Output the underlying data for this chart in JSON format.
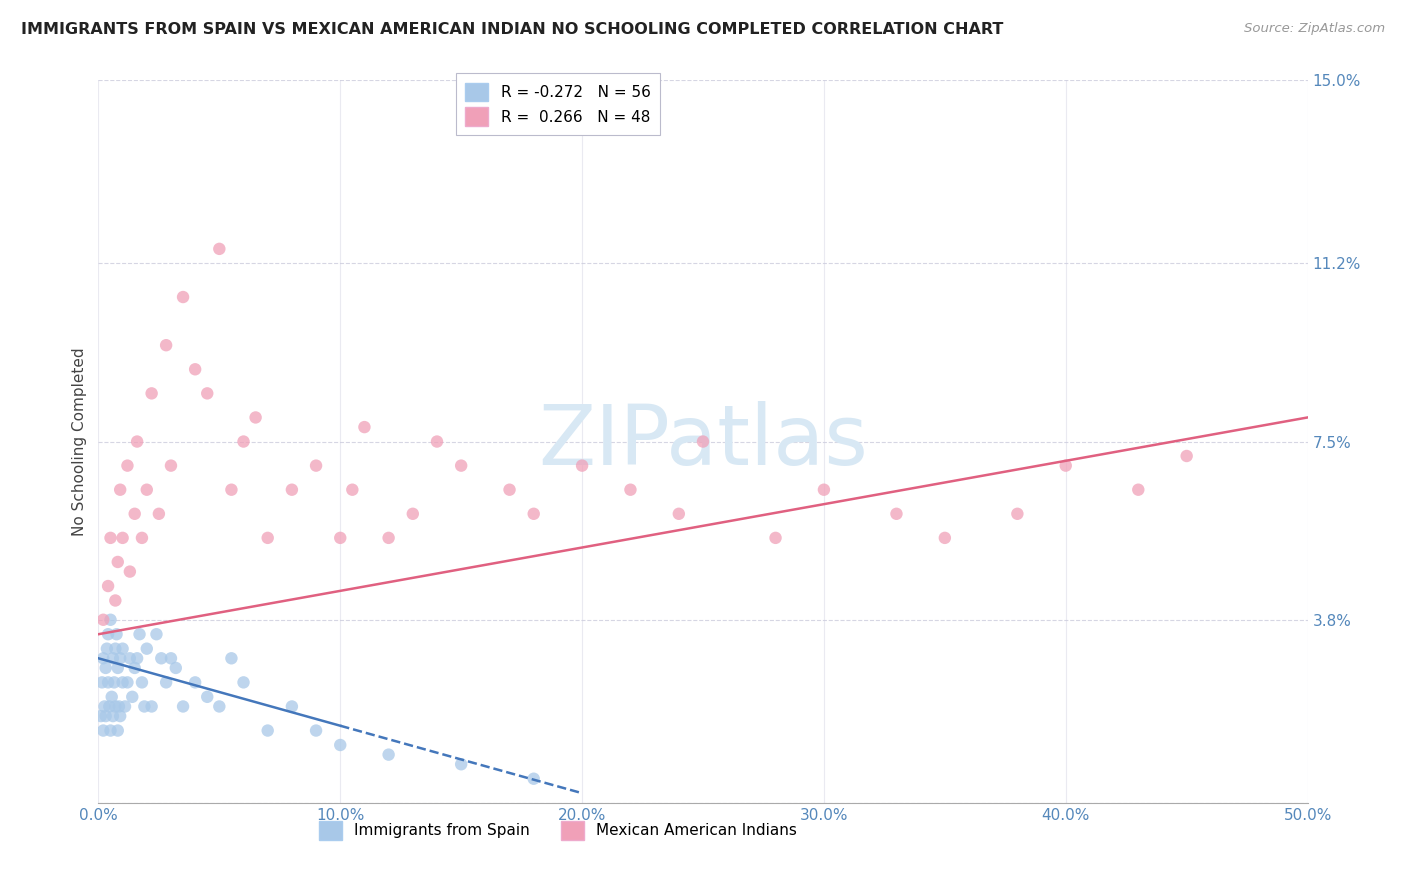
{
  "title": "IMMIGRANTS FROM SPAIN VS MEXICAN AMERICAN INDIAN NO SCHOOLING COMPLETED CORRELATION CHART",
  "source": "Source: ZipAtlas.com",
  "ylabel": "No Schooling Completed",
  "xlim": [
    0.0,
    50.0
  ],
  "ylim": [
    0.0,
    15.0
  ],
  "xticks": [
    0.0,
    10.0,
    20.0,
    30.0,
    40.0,
    50.0
  ],
  "yticks": [
    0.0,
    3.8,
    7.5,
    11.2,
    15.0
  ],
  "xtick_labels": [
    "0.0%",
    "10.0%",
    "20.0%",
    "30.0%",
    "40.0%",
    "50.0%"
  ],
  "ytick_labels": [
    "",
    "3.8%",
    "7.5%",
    "11.2%",
    "15.0%"
  ],
  "blue_R": -0.272,
  "blue_N": 56,
  "pink_R": 0.266,
  "pink_N": 48,
  "blue_color": "#A8C8E8",
  "pink_color": "#F0A0B8",
  "blue_line_color": "#4477BB",
  "pink_line_color": "#E06080",
  "legend_label_blue": "Immigrants from Spain",
  "legend_label_pink": "Mexican American Indians",
  "blue_scatter_x": [
    0.1,
    0.15,
    0.2,
    0.2,
    0.25,
    0.3,
    0.3,
    0.35,
    0.4,
    0.4,
    0.45,
    0.5,
    0.5,
    0.55,
    0.6,
    0.6,
    0.65,
    0.7,
    0.7,
    0.75,
    0.8,
    0.8,
    0.85,
    0.9,
    0.9,
    1.0,
    1.0,
    1.1,
    1.2,
    1.3,
    1.4,
    1.5,
    1.6,
    1.7,
    1.8,
    1.9,
    2.0,
    2.2,
    2.4,
    2.6,
    2.8,
    3.0,
    3.2,
    3.5,
    4.0,
    4.5,
    5.0,
    5.5,
    6.0,
    7.0,
    8.0,
    9.0,
    10.0,
    12.0,
    15.0,
    18.0
  ],
  "blue_scatter_y": [
    1.8,
    2.5,
    1.5,
    3.0,
    2.0,
    1.8,
    2.8,
    3.2,
    2.5,
    3.5,
    2.0,
    1.5,
    3.8,
    2.2,
    1.8,
    3.0,
    2.5,
    2.0,
    3.2,
    3.5,
    1.5,
    2.8,
    2.0,
    1.8,
    3.0,
    2.5,
    3.2,
    2.0,
    2.5,
    3.0,
    2.2,
    2.8,
    3.0,
    3.5,
    2.5,
    2.0,
    3.2,
    2.0,
    3.5,
    3.0,
    2.5,
    3.0,
    2.8,
    2.0,
    2.5,
    2.2,
    2.0,
    3.0,
    2.5,
    1.5,
    2.0,
    1.5,
    1.2,
    1.0,
    0.8,
    0.5
  ],
  "pink_scatter_x": [
    0.2,
    0.4,
    0.5,
    0.7,
    0.8,
    0.9,
    1.0,
    1.2,
    1.3,
    1.5,
    1.6,
    1.8,
    2.0,
    2.2,
    2.5,
    2.8,
    3.0,
    3.5,
    4.0,
    4.5,
    5.0,
    5.5,
    6.0,
    6.5,
    7.0,
    8.0,
    9.0,
    10.0,
    10.5,
    11.0,
    12.0,
    13.0,
    14.0,
    15.0,
    17.0,
    18.0,
    20.0,
    22.0,
    24.0,
    25.0,
    28.0,
    30.0,
    33.0,
    35.0,
    38.0,
    40.0,
    43.0,
    45.0
  ],
  "pink_scatter_y": [
    3.8,
    4.5,
    5.5,
    4.2,
    5.0,
    6.5,
    5.5,
    7.0,
    4.8,
    6.0,
    7.5,
    5.5,
    6.5,
    8.5,
    6.0,
    9.5,
    7.0,
    10.5,
    9.0,
    8.5,
    11.5,
    6.5,
    7.5,
    8.0,
    5.5,
    6.5,
    7.0,
    5.5,
    6.5,
    7.8,
    5.5,
    6.0,
    7.5,
    7.0,
    6.5,
    6.0,
    7.0,
    6.5,
    6.0,
    7.5,
    5.5,
    6.5,
    6.0,
    5.5,
    6.0,
    7.0,
    6.5,
    7.2
  ],
  "blue_line_x0": 0.0,
  "blue_line_x1": 20.0,
  "blue_line_y0": 3.0,
  "blue_line_y1": 0.2,
  "pink_line_x0": 0.0,
  "pink_line_x1": 50.0,
  "pink_line_y0": 3.5,
  "pink_line_y1": 8.0
}
